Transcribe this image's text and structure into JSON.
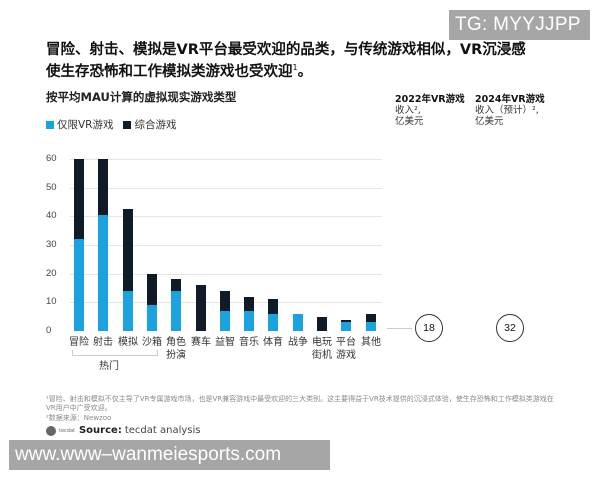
{
  "watermarks": {
    "top": "TG: MYYJJPP",
    "bottom": "www.www–wanmeiesports.com"
  },
  "headline": {
    "line1": "冒险、射击、模拟是VR平台最受欢迎的品类，与传统游戏相似，VR沉浸感",
    "line2": "使生存恐怖和工作模拟类游戏也受欢迎",
    "sup": "1",
    "end": "。"
  },
  "subtitle": "按平均MAU计算的虚拟现实游戏类型",
  "legend": [
    {
      "label": "仅限VR游戏",
      "color": "#1ba3e0"
    },
    {
      "label": "综合游戏",
      "color": "#0f1b26"
    }
  ],
  "revenue": {
    "h2022": {
      "line1": "2022年VR游戏",
      "line2": "收入²,",
      "line3": "亿美元",
      "value": "18"
    },
    "h2024": {
      "line1": "2024年VR游戏",
      "line2": "收入（预计）²,",
      "line3": "亿美元",
      "value": "32"
    }
  },
  "group_label": "热门",
  "footnotes": {
    "note1": "¹冒险、射击和模拟不仅主导了VR专属游戏市场，也是VR兼容游戏中最受欢迎的三大类别。这主要得益于VR技术提供的沉浸式体验，使生存恐怖和工作模拟类游戏在VR用户中广受欢迎。",
    "note2": "²数据来源：Newzoo"
  },
  "source": {
    "logo": "tecdat",
    "label": "Source:",
    "text": "tecdat analysis"
  },
  "chart_data": {
    "type": "bar",
    "stacked": true,
    "title": "按平均MAU计算的虚拟现实游戏类型",
    "xlabel": "",
    "ylabel": "",
    "ylim": [
      0,
      60
    ],
    "yticks": [
      0,
      10,
      20,
      30,
      40,
      50,
      60
    ],
    "grid": true,
    "legend_position": "top-left",
    "categories": [
      "冒险",
      "射击",
      "模拟",
      "沙箱",
      "角色扮演",
      "赛车",
      "益智",
      "音乐",
      "体育",
      "战争",
      "电玩街机",
      "平台游戏",
      "其他"
    ],
    "category_display": [
      [
        "冒险"
      ],
      [
        "射击"
      ],
      [
        "模拟"
      ],
      [
        "沙箱"
      ],
      [
        "角色",
        "扮演"
      ],
      [
        "赛车"
      ],
      [
        "益智"
      ],
      [
        "音乐"
      ],
      [
        "体育"
      ],
      [
        "战争"
      ],
      [
        "电玩",
        "街机"
      ],
      [
        "平台",
        "游戏"
      ],
      [
        "其他"
      ]
    ],
    "series": [
      {
        "name": "仅限VR游戏",
        "color": "#1ba3e0",
        "values": [
          32,
          40.5,
          14,
          9,
          14,
          0,
          7,
          7,
          6,
          6,
          0,
          3,
          3
        ]
      },
      {
        "name": "综合游戏",
        "color": "#0f1b26",
        "values": [
          28,
          19.5,
          28.5,
          11,
          4,
          16,
          7,
          5,
          5,
          0,
          5,
          1,
          3
        ]
      }
    ],
    "totals": [
      60,
      60,
      42.5,
      20,
      18,
      16,
      14,
      12,
      11,
      6,
      5,
      4,
      6
    ],
    "annotations": [
      {
        "text": "热门",
        "spans": [
          "冒险",
          "射击",
          "模拟"
        ]
      }
    ],
    "side_values": [
      {
        "label": "2022年VR游戏收入, 亿美元",
        "value": 18
      },
      {
        "label": "2024年VR游戏收入（预计）, 亿美元",
        "value": 32
      }
    ]
  }
}
